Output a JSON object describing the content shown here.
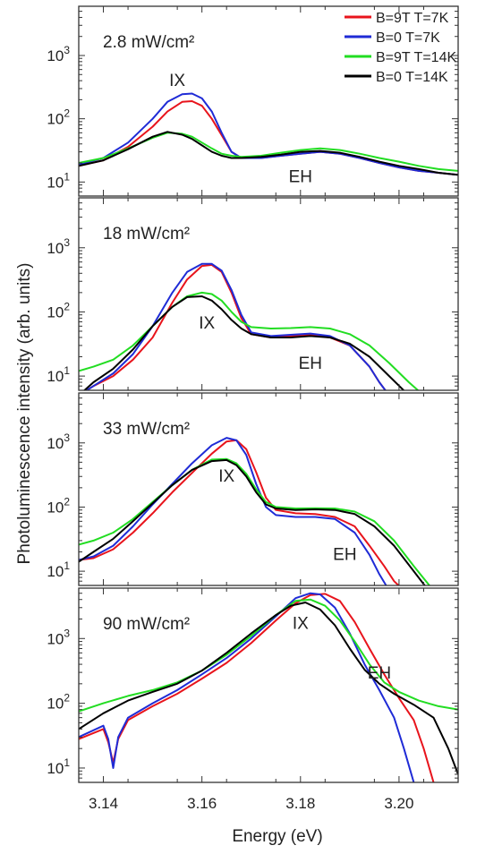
{
  "chart_data": {
    "type": "line",
    "ylabel": "Photoluminescence intensity (arb. units)",
    "xlabel": "Energy (eV)",
    "xlim": [
      3.135,
      3.212
    ],
    "xticks": [
      "3.14",
      "3.16",
      "3.18",
      "3.20"
    ],
    "xtick_values": [
      3.14,
      3.16,
      3.18,
      3.2
    ],
    "yscale": "log",
    "grid": false,
    "legend_position": "top-right",
    "legend": [
      {
        "label": "B=9T T=7K",
        "color": "#e8141c"
      },
      {
        "label": "B=0 T=7K",
        "color": "#1f2bd6"
      },
      {
        "label": "B=9T T=14K",
        "color": "#22dd22"
      },
      {
        "label": "B=0 T=14K",
        "color": "#000000"
      }
    ],
    "panels": [
      {
        "title": "2.8 mW/cm²",
        "ylim": [
          6,
          6000
        ],
        "yticks": [
          {
            "base": "10",
            "exp": "1",
            "value": 10
          },
          {
            "base": "10",
            "exp": "2",
            "value": 100
          },
          {
            "base": "10",
            "exp": "3",
            "value": 1000
          }
        ],
        "annotations": [
          {
            "text": "IX",
            "x": 3.155,
            "y": 330
          },
          {
            "text": "EH",
            "x": 3.18,
            "y": 10
          }
        ],
        "series": [
          {
            "color": "#e8141c",
            "x": [
              3.135,
              3.14,
              3.145,
              3.15,
              3.153,
              3.156,
              3.158,
              3.16,
              3.162,
              3.164,
              3.166,
              3.168,
              3.172,
              3.176,
              3.18,
              3.184,
              3.188,
              3.192,
              3.196,
              3.2,
              3.204,
              3.208,
              3.212
            ],
            "y": [
              18,
              22,
              36,
              75,
              130,
              185,
              190,
              160,
              100,
              55,
              30,
              24,
              24,
              26,
              28,
              30,
              28,
              24,
              20,
              17,
              15,
              14,
              13
            ]
          },
          {
            "color": "#1f2bd6",
            "x": [
              3.135,
              3.14,
              3.145,
              3.15,
              3.153,
              3.156,
              3.158,
              3.16,
              3.162,
              3.164,
              3.166,
              3.168,
              3.172,
              3.176,
              3.18,
              3.184,
              3.188,
              3.192,
              3.196,
              3.2,
              3.204,
              3.208,
              3.212
            ],
            "y": [
              19,
              24,
              42,
              100,
              185,
              245,
              250,
              210,
              130,
              60,
              30,
              24,
              24,
              26,
              28,
              30,
              28,
              24,
              20,
              17,
              15,
              14,
              13
            ]
          },
          {
            "color": "#22dd22",
            "x": [
              3.135,
              3.14,
              3.145,
              3.15,
              3.153,
              3.156,
              3.158,
              3.16,
              3.162,
              3.164,
              3.166,
              3.168,
              3.172,
              3.176,
              3.18,
              3.184,
              3.188,
              3.192,
              3.196,
              3.2,
              3.204,
              3.208,
              3.212
            ],
            "y": [
              20,
              24,
              34,
              50,
              60,
              58,
              52,
              42,
              34,
              28,
              26,
              25,
              26,
              29,
              32,
              34,
              32,
              28,
              24,
              21,
              18,
              16,
              15
            ]
          },
          {
            "color": "#000000",
            "x": [
              3.135,
              3.14,
              3.145,
              3.15,
              3.153,
              3.156,
              3.158,
              3.16,
              3.162,
              3.164,
              3.166,
              3.168,
              3.172,
              3.176,
              3.18,
              3.184,
              3.188,
              3.192,
              3.196,
              3.2,
              3.204,
              3.208,
              3.212
            ],
            "y": [
              18,
              22,
              33,
              52,
              62,
              56,
              48,
              38,
              30,
              26,
              24,
              24,
              25,
              27,
              30,
              31,
              29,
              25,
              21,
              18,
              16,
              14,
              13
            ]
          }
        ]
      },
      {
        "title": "18 mW/cm²",
        "ylim": [
          6,
          6000
        ],
        "yticks": [
          {
            "base": "10",
            "exp": "1",
            "value": 10
          },
          {
            "base": "10",
            "exp": "2",
            "value": 100
          },
          {
            "base": "10",
            "exp": "3",
            "value": 1000
          }
        ],
        "annotations": [
          {
            "text": "IX",
            "x": 3.161,
            "y": 55
          },
          {
            "text": "EH",
            "x": 3.182,
            "y": 13
          }
        ],
        "series": [
          {
            "color": "#e8141c",
            "x": [
              3.135,
              3.138,
              3.142,
              3.146,
              3.15,
              3.154,
              3.157,
              3.16,
              3.162,
              3.164,
              3.166,
              3.168,
              3.17,
              3.174,
              3.178,
              3.182,
              3.186,
              3.19,
              3.194,
              3.196,
              3.198,
              3.2
            ],
            "y": [
              5,
              7,
              10,
              18,
              40,
              140,
              320,
              520,
              540,
              420,
              200,
              80,
              45,
              40,
              42,
              44,
              40,
              30,
              14,
              8,
              5,
              4
            ]
          },
          {
            "color": "#1f2bd6",
            "x": [
              3.135,
              3.138,
              3.142,
              3.146,
              3.15,
              3.154,
              3.157,
              3.16,
              3.162,
              3.164,
              3.166,
              3.168,
              3.17,
              3.174,
              3.178,
              3.182,
              3.186,
              3.19,
              3.194,
              3.196,
              3.198,
              3.2
            ],
            "y": [
              5,
              7,
              11,
              22,
              60,
              200,
              420,
              560,
              560,
              440,
              220,
              90,
              48,
              42,
              44,
              46,
              42,
              30,
              14,
              8,
              5,
              4
            ]
          },
          {
            "color": "#22dd22",
            "x": [
              3.135,
              3.138,
              3.142,
              3.146,
              3.15,
              3.154,
              3.157,
              3.16,
              3.162,
              3.164,
              3.166,
              3.168,
              3.17,
              3.174,
              3.178,
              3.182,
              3.186,
              3.19,
              3.194,
              3.198,
              3.202,
              3.205
            ],
            "y": [
              12,
              14,
              18,
              30,
              60,
              120,
              175,
              200,
              190,
              150,
              100,
              70,
              58,
              55,
              56,
              58,
              55,
              45,
              30,
              16,
              8,
              5
            ]
          },
          {
            "color": "#000000",
            "x": [
              3.135,
              3.138,
              3.142,
              3.146,
              3.15,
              3.154,
              3.157,
              3.16,
              3.162,
              3.164,
              3.166,
              3.168,
              3.17,
              3.174,
              3.178,
              3.182,
              3.186,
              3.19,
              3.194,
              3.198,
              3.202
            ],
            "y": [
              5,
              8,
              13,
              26,
              60,
              120,
              170,
              175,
              150,
              110,
              75,
              55,
              45,
              40,
              40,
              42,
              40,
              32,
              20,
              10,
              5
            ]
          }
        ]
      },
      {
        "title": "33 mW/cm²",
        "ylim": [
          6,
          6000
        ],
        "yticks": [
          {
            "base": "10",
            "exp": "1",
            "value": 10
          },
          {
            "base": "10",
            "exp": "2",
            "value": 100
          },
          {
            "base": "10",
            "exp": "3",
            "value": 1000
          }
        ],
        "annotations": [
          {
            "text": "IX",
            "x": 3.165,
            "y": 250
          },
          {
            "text": "EH",
            "x": 3.189,
            "y": 15
          }
        ],
        "series": [
          {
            "color": "#e8141c",
            "x": [
              3.135,
              3.138,
              3.142,
              3.146,
              3.15,
              3.154,
              3.158,
              3.162,
              3.165,
              3.167,
              3.169,
              3.171,
              3.173,
              3.175,
              3.179,
              3.183,
              3.187,
              3.191,
              3.194,
              3.197,
              3.199,
              3.201
            ],
            "y": [
              15,
              16,
              22,
              40,
              80,
              170,
              340,
              680,
              1050,
              1100,
              800,
              350,
              140,
              90,
              80,
              78,
              70,
              50,
              25,
              12,
              7,
              5
            ]
          },
          {
            "color": "#1f2bd6",
            "x": [
              3.135,
              3.138,
              3.142,
              3.146,
              3.15,
              3.154,
              3.158,
              3.162,
              3.165,
              3.167,
              3.169,
              3.171,
              3.173,
              3.175,
              3.179,
              3.183,
              3.187,
              3.191,
              3.194,
              3.196,
              3.198
            ],
            "y": [
              15,
              17,
              25,
              50,
              110,
              230,
              480,
              920,
              1200,
              1100,
              650,
              230,
              100,
              75,
              70,
              70,
              65,
              40,
              18,
              9,
              5
            ]
          },
          {
            "color": "#22dd22",
            "x": [
              3.135,
              3.138,
              3.142,
              3.146,
              3.15,
              3.154,
              3.158,
              3.162,
              3.165,
              3.167,
              3.169,
              3.171,
              3.173,
              3.175,
              3.179,
              3.183,
              3.187,
              3.191,
              3.195,
              3.199,
              3.203,
              3.207
            ],
            "y": [
              26,
              30,
              40,
              65,
              120,
              220,
              380,
              550,
              560,
              480,
              330,
              190,
              120,
              100,
              95,
              96,
              95,
              85,
              60,
              30,
              12,
              5
            ]
          },
          {
            "color": "#000000",
            "x": [
              3.135,
              3.138,
              3.142,
              3.146,
              3.15,
              3.154,
              3.158,
              3.162,
              3.165,
              3.167,
              3.169,
              3.171,
              3.173,
              3.175,
              3.179,
              3.183,
              3.187,
              3.191,
              3.195,
              3.199,
              3.203,
              3.206
            ],
            "y": [
              14,
              20,
              32,
              60,
              115,
              220,
              380,
              520,
              540,
              450,
              300,
              170,
              110,
              95,
              90,
              92,
              90,
              78,
              50,
              25,
              10,
              5
            ]
          }
        ]
      },
      {
        "title": "90 mW/cm²",
        "ylim": [
          6,
          6000
        ],
        "yticks": [
          {
            "base": "10",
            "exp": "1",
            "value": 10
          },
          {
            "base": "10",
            "exp": "2",
            "value": 100
          },
          {
            "base": "10",
            "exp": "3",
            "value": 1000
          }
        ],
        "annotations": [
          {
            "text": "IX",
            "x": 3.18,
            "y": 1400
          },
          {
            "text": "EH",
            "x": 3.196,
            "y": 240
          }
        ],
        "series": [
          {
            "color": "#e8141c",
            "x": [
              3.135,
              3.14,
              3.141,
              3.142,
              3.143,
              3.145,
              3.15,
              3.155,
              3.16,
              3.165,
              3.17,
              3.175,
              3.179,
              3.182,
              3.185,
              3.188,
              3.191,
              3.194,
              3.197,
              3.2,
              3.203,
              3.205,
              3.207
            ],
            "y": [
              28,
              40,
              25,
              12,
              28,
              55,
              90,
              140,
              240,
              420,
              850,
              1900,
              3500,
              4700,
              4900,
              3800,
              1800,
              700,
              280,
              120,
              55,
              20,
              6
            ]
          },
          {
            "color": "#1f2bd6",
            "x": [
              3.135,
              3.14,
              3.141,
              3.142,
              3.143,
              3.145,
              3.15,
              3.155,
              3.16,
              3.165,
              3.17,
              3.175,
              3.179,
              3.182,
              3.184,
              3.187,
              3.19,
              3.193,
              3.196,
              3.199,
              3.201,
              3.203
            ],
            "y": [
              30,
              45,
              28,
              10,
              30,
              60,
              100,
              160,
              280,
              500,
              1000,
              2200,
              4200,
              5000,
              4800,
              3000,
              1200,
              400,
              160,
              60,
              20,
              6
            ]
          },
          {
            "color": "#22dd22",
            "x": [
              3.135,
              3.14,
              3.145,
              3.15,
              3.155,
              3.16,
              3.165,
              3.17,
              3.175,
              3.179,
              3.182,
              3.185,
              3.188,
              3.191,
              3.194,
              3.197,
              3.2,
              3.204,
              3.208,
              3.212
            ],
            "y": [
              75,
              100,
              130,
              160,
              210,
              320,
              560,
              1100,
              2300,
              3800,
              4000,
              3200,
              1900,
              900,
              400,
              210,
              150,
              110,
              90,
              80
            ]
          },
          {
            "color": "#000000",
            "x": [
              3.135,
              3.14,
              3.145,
              3.15,
              3.155,
              3.16,
              3.165,
              3.17,
              3.175,
              3.178,
              3.181,
              3.184,
              3.187,
              3.19,
              3.193,
              3.196,
              3.199,
              3.203,
              3.207,
              3.21,
              3.212
            ],
            "y": [
              40,
              70,
              110,
              150,
              200,
              320,
              600,
              1200,
              2300,
              3200,
              3600,
              2800,
              1600,
              700,
              330,
              200,
              140,
              95,
              60,
              20,
              8
            ]
          }
        ]
      }
    ]
  }
}
